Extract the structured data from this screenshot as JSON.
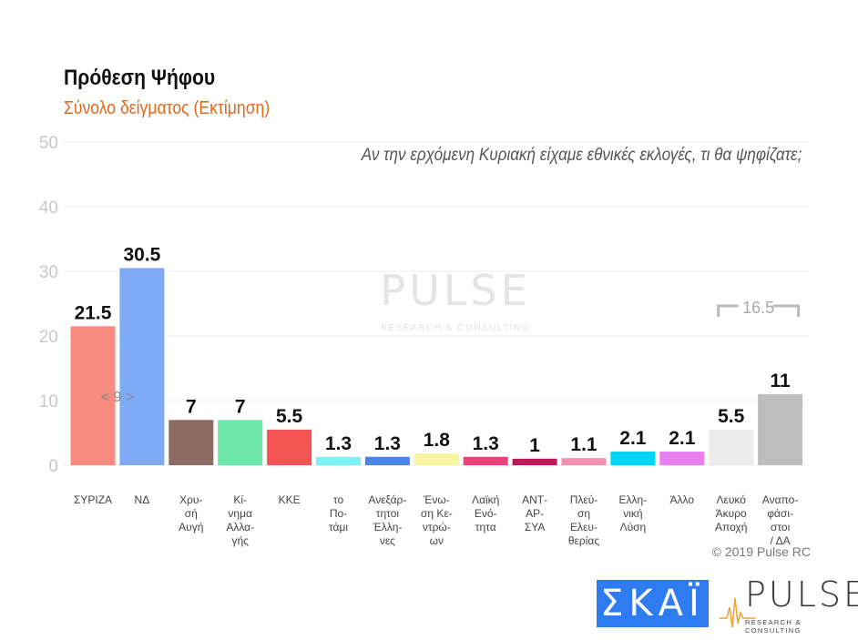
{
  "chart_data": {
    "type": "bar",
    "title": "Πρόθεση Ψήφου",
    "subtitle": "Σύνολο δείγματος   (Εκτίμηση)",
    "question": "Αν την ερχόμενη Κυριακή είχαμε εθνικές εκλογές, τι θα ψηφίζατε;",
    "ylim": [
      0,
      50
    ],
    "yticks": [
      0,
      10,
      20,
      30,
      40,
      50
    ],
    "grid": true,
    "categories": [
      [
        "ΣΥΡΙΖΑ"
      ],
      [
        "ΝΔ"
      ],
      [
        "Χρυ-",
        "σή",
        "Αυγή"
      ],
      [
        "Κί-",
        "νημα",
        "Αλλα-",
        "γής"
      ],
      [
        "ΚΚΕ"
      ],
      [
        "το",
        "Πο-",
        "τάμι"
      ],
      [
        "Ανεξάρ-",
        "τητοι",
        "Έλλη-",
        "νες"
      ],
      [
        "Ένω-",
        "ση Κε-",
        "ντρώ-",
        "ων"
      ],
      [
        "Λαϊκή",
        "Ενό-",
        "τητα"
      ],
      [
        "ΑΝΤ-",
        "ΑΡ-",
        "ΣΥΑ"
      ],
      [
        "Πλεύ-",
        "ση",
        "Ελευ-",
        "θερίας"
      ],
      [
        "Ελλη-",
        "νική",
        "Λύση"
      ],
      [
        "Άλλο"
      ],
      [
        "Λευκό",
        "Άκυρο",
        "Αποχή"
      ],
      [
        "Αναπο-",
        "φάσι-",
        "στοι",
        "/ ΔΑ"
      ]
    ],
    "values": [
      21.5,
      30.5,
      7,
      7,
      5.5,
      1.3,
      1.3,
      1.8,
      1.3,
      1,
      1.1,
      2.1,
      2.1,
      5.5,
      11
    ],
    "value_labels": [
      "21.5",
      "30.5",
      "7",
      "7",
      "5.5",
      "1.3",
      "1.3",
      "1.8",
      "1.3",
      "1",
      "1.1",
      "2.1",
      "2.1",
      "5.5",
      "11"
    ],
    "colors": [
      "#f98a80",
      "#7eaaf8",
      "#8d6b63",
      "#6ee8a8",
      "#f55454",
      "#7ef3f3",
      "#4a86e8",
      "#f7f5a0",
      "#f0407a",
      "#c0185a",
      "#f78fb3",
      "#00d5f5",
      "#e87ef0",
      "#ececec",
      "#bdbdbd"
    ],
    "annotations": [
      {
        "text": "< 9 >",
        "between": [
          "ΣΥΡΙΖΑ",
          "ΝΔ"
        ],
        "value": 9
      },
      {
        "text": "16.5",
        "between": [
          "Λευκό Άκυρο Αποχή",
          "Αναποφάσιστοι / ΔΑ"
        ],
        "value": 16.5
      }
    ]
  },
  "copyright": "© 2019 Pulse RC",
  "watermark": "PULSE RESEARCH & CONSULTING",
  "logos": {
    "skai": "ΣΚΑΪ",
    "pulse": "PULSE",
    "pulse_sub": "RESEARCH & CONSULTING"
  }
}
